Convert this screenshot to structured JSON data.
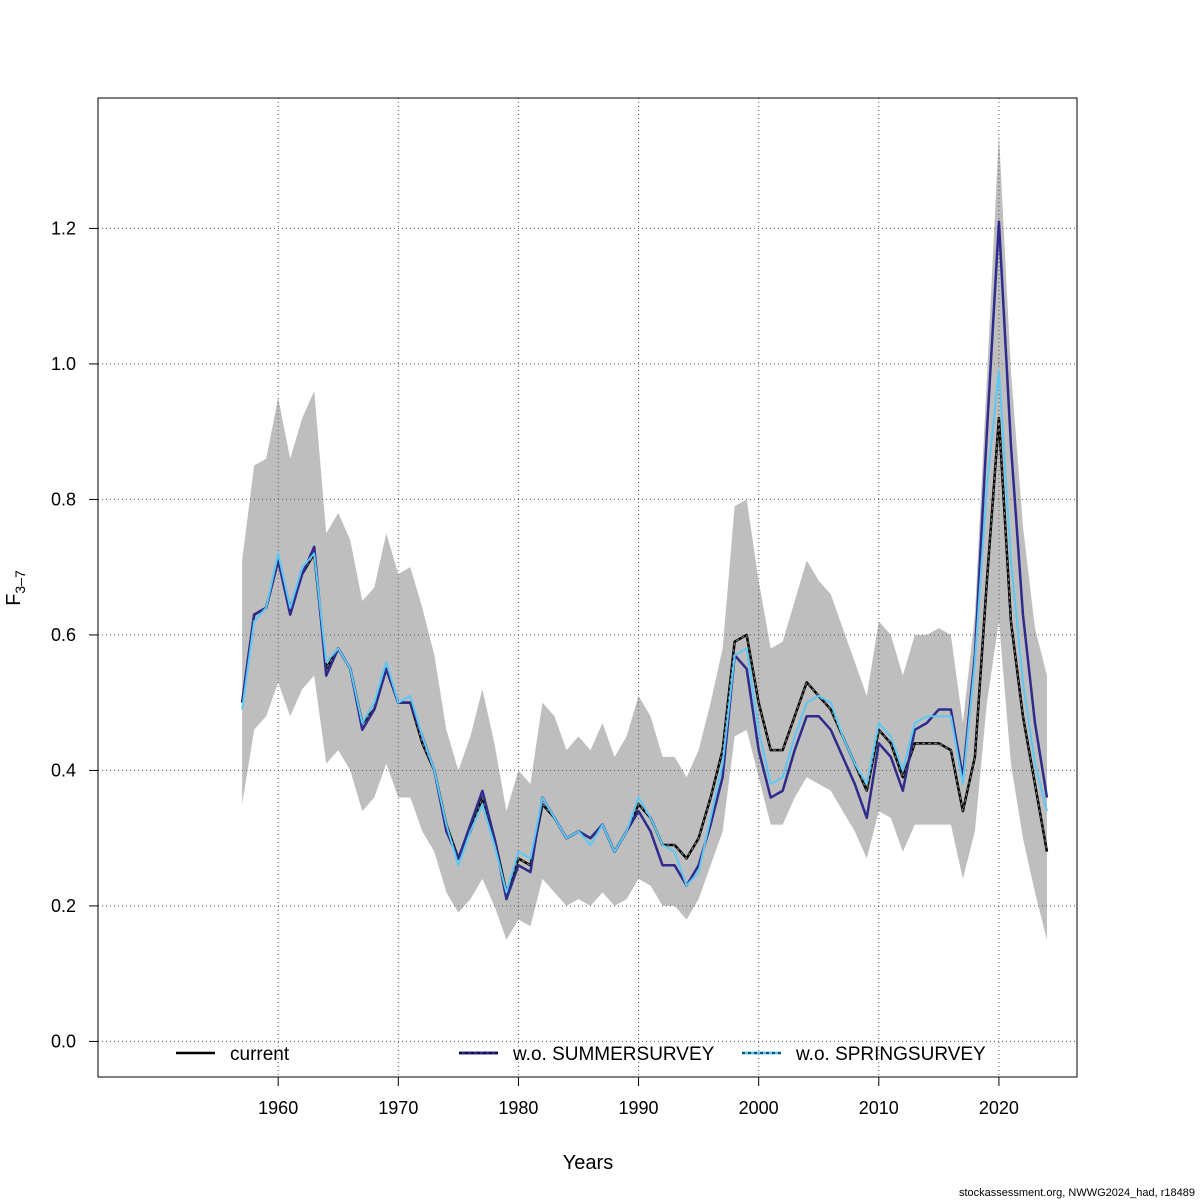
{
  "chart_data": {
    "type": "line",
    "xlabel": "Years",
    "ylabel": "F",
    "ylabel_sub": "3–7",
    "xlim": [
      1945,
      2026.5
    ],
    "ylim": [
      -0.0525,
      1.3925
    ],
    "xticks": [
      "1960",
      "1970",
      "1980",
      "1990",
      "2000",
      "2010",
      "2020"
    ],
    "yticks": [
      "0.0",
      "0.2",
      "0.4",
      "0.6",
      "0.8",
      "1.0",
      "1.2"
    ],
    "grid": true,
    "legend_position": "bottom",
    "footer": "stockassessment.org, NWWG2024_had, r18489",
    "colors": {
      "band": "#bebebe",
      "current": "#000000",
      "summer": "#2e2b8c",
      "spring": "#5bc8f5",
      "grid": "#555555",
      "frame": "#000000"
    },
    "x": [
      1957,
      1958,
      1959,
      1960,
      1961,
      1962,
      1963,
      1964,
      1965,
      1966,
      1967,
      1968,
      1969,
      1970,
      1971,
      1972,
      1973,
      1974,
      1975,
      1976,
      1977,
      1978,
      1979,
      1980,
      1981,
      1982,
      1983,
      1984,
      1985,
      1986,
      1987,
      1988,
      1989,
      1990,
      1991,
      1992,
      1993,
      1994,
      1995,
      1996,
      1997,
      1998,
      1999,
      2000,
      2001,
      2002,
      2003,
      2004,
      2005,
      2006,
      2007,
      2008,
      2009,
      2010,
      2011,
      2012,
      2013,
      2014,
      2015,
      2016,
      2017,
      2018,
      2019,
      2020,
      2021,
      2022,
      2023,
      2024
    ],
    "band": {
      "upper": [
        0.71,
        0.85,
        0.86,
        0.95,
        0.86,
        0.92,
        0.96,
        0.75,
        0.78,
        0.74,
        0.65,
        0.67,
        0.75,
        0.69,
        0.7,
        0.64,
        0.57,
        0.46,
        0.4,
        0.45,
        0.52,
        0.44,
        0.34,
        0.4,
        0.38,
        0.5,
        0.48,
        0.43,
        0.45,
        0.43,
        0.47,
        0.42,
        0.45,
        0.51,
        0.48,
        0.42,
        0.42,
        0.39,
        0.43,
        0.5,
        0.58,
        0.79,
        0.8,
        0.68,
        0.58,
        0.59,
        0.65,
        0.71,
        0.68,
        0.66,
        0.61,
        0.56,
        0.51,
        0.62,
        0.6,
        0.54,
        0.6,
        0.6,
        0.61,
        0.6,
        0.47,
        0.63,
        0.98,
        1.34,
        0.99,
        0.76,
        0.61,
        0.54
      ],
      "lower": [
        0.35,
        0.46,
        0.48,
        0.53,
        0.48,
        0.52,
        0.54,
        0.41,
        0.43,
        0.4,
        0.34,
        0.36,
        0.41,
        0.36,
        0.36,
        0.31,
        0.28,
        0.22,
        0.19,
        0.21,
        0.24,
        0.2,
        0.15,
        0.18,
        0.17,
        0.24,
        0.22,
        0.2,
        0.21,
        0.2,
        0.22,
        0.2,
        0.21,
        0.24,
        0.23,
        0.2,
        0.2,
        0.18,
        0.21,
        0.26,
        0.31,
        0.45,
        0.46,
        0.39,
        0.32,
        0.32,
        0.36,
        0.39,
        0.38,
        0.37,
        0.34,
        0.31,
        0.27,
        0.34,
        0.33,
        0.28,
        0.32,
        0.32,
        0.32,
        0.32,
        0.24,
        0.31,
        0.5,
        0.62,
        0.41,
        0.3,
        0.22,
        0.15
      ]
    },
    "series": [
      {
        "name": "current",
        "values": [
          0.5,
          0.63,
          0.64,
          0.71,
          0.64,
          0.69,
          0.72,
          0.55,
          0.58,
          0.55,
          0.47,
          0.49,
          0.55,
          0.5,
          0.5,
          0.44,
          0.4,
          0.32,
          0.27,
          0.31,
          0.36,
          0.3,
          0.22,
          0.27,
          0.26,
          0.35,
          0.33,
          0.3,
          0.31,
          0.3,
          0.32,
          0.28,
          0.31,
          0.35,
          0.33,
          0.29,
          0.29,
          0.27,
          0.3,
          0.36,
          0.43,
          0.59,
          0.6,
          0.5,
          0.43,
          0.43,
          0.48,
          0.53,
          0.51,
          0.49,
          0.45,
          0.41,
          0.37,
          0.46,
          0.44,
          0.39,
          0.44,
          0.44,
          0.44,
          0.43,
          0.34,
          0.42,
          0.68,
          0.92,
          0.62,
          0.48,
          0.38,
          0.28
        ]
      },
      {
        "name": "w.o. SUMMERSURVEY",
        "values": [
          0.5,
          0.63,
          0.64,
          0.71,
          0.63,
          0.69,
          0.73,
          0.54,
          0.58,
          0.55,
          0.46,
          0.49,
          0.55,
          0.5,
          0.5,
          0.45,
          0.4,
          0.31,
          0.27,
          0.32,
          0.37,
          0.3,
          0.21,
          0.26,
          0.25,
          0.36,
          0.33,
          0.3,
          0.31,
          0.3,
          0.32,
          0.28,
          0.31,
          0.34,
          0.31,
          0.26,
          0.26,
          0.23,
          0.26,
          0.32,
          0.39,
          0.57,
          0.55,
          0.43,
          0.36,
          0.37,
          0.43,
          0.48,
          0.48,
          0.46,
          0.42,
          0.38,
          0.33,
          0.44,
          0.42,
          0.37,
          0.46,
          0.47,
          0.49,
          0.49,
          0.39,
          0.57,
          0.9,
          1.21,
          0.88,
          0.63,
          0.47,
          0.36
        ]
      },
      {
        "name": "w.o. SPRINGSURVEY",
        "values": [
          0.49,
          0.62,
          0.64,
          0.72,
          0.64,
          0.7,
          0.72,
          0.56,
          0.58,
          0.55,
          0.47,
          0.5,
          0.56,
          0.5,
          0.51,
          0.45,
          0.4,
          0.32,
          0.26,
          0.31,
          0.35,
          0.29,
          0.22,
          0.28,
          0.27,
          0.36,
          0.33,
          0.3,
          0.31,
          0.29,
          0.32,
          0.28,
          0.31,
          0.36,
          0.33,
          0.29,
          0.28,
          0.23,
          0.25,
          0.33,
          0.41,
          0.57,
          0.58,
          0.46,
          0.38,
          0.39,
          0.45,
          0.5,
          0.51,
          0.5,
          0.45,
          0.41,
          0.38,
          0.47,
          0.45,
          0.4,
          0.47,
          0.48,
          0.48,
          0.48,
          0.38,
          0.56,
          0.82,
          0.99,
          0.71,
          0.53,
          0.41,
          0.34
        ]
      }
    ]
  }
}
